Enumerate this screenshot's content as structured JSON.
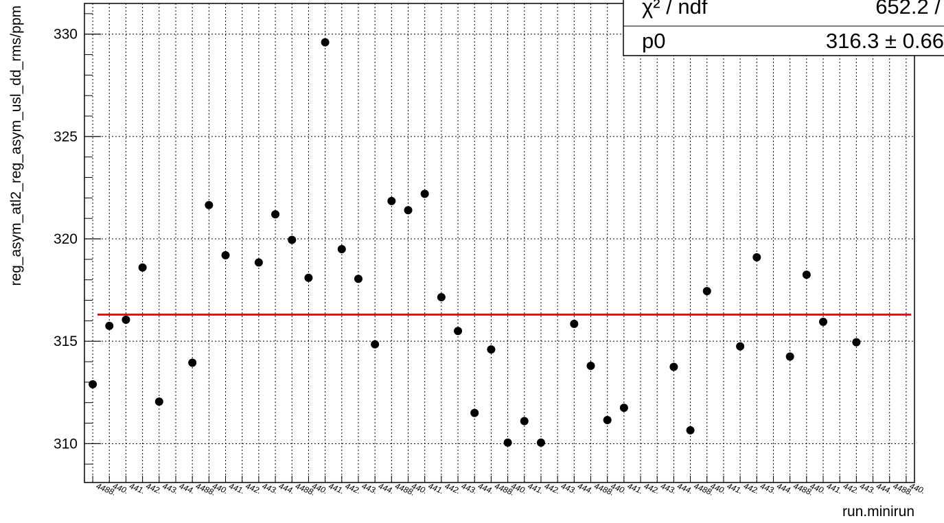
{
  "chart_data": {
    "type": "scatter",
    "xlabel": "run.minirun",
    "ylabel": "reg_asym_atl2_reg_asym_usl_dd_rms/ppm",
    "ylim": [
      308.1,
      331.5
    ],
    "yticks": [
      310,
      315,
      320,
      325,
      330
    ],
    "grid": true,
    "categories": [
      "4488.0",
      "4488.1",
      "4488.2",
      "4488.3",
      "4489.0",
      "4489.1",
      "4489.2",
      "4491.0",
      "4491.1",
      "4491.2",
      "4492.0",
      "4492.1",
      "4492.2",
      "4492.3",
      "4493.0",
      "4493.1",
      "4493.2",
      "4494.0",
      "4494.1",
      "4494.2",
      "4495.0",
      "4495.1",
      "4495.2",
      "4495.3",
      "4496.0",
      "4496.1",
      "4496.2",
      "4496.3",
      "4498.0",
      "4498.1",
      "4498.2",
      "4498.3",
      "4499.0",
      "4499.1",
      "4499.2",
      "4499.3",
      "4499.4",
      "4500.0",
      "4500.1",
      "4500.2",
      "4500.3",
      "4501.0",
      "4501.1",
      "4501.2",
      "4501.3",
      "4501.4",
      "4502.0",
      "4502.1",
      "4502.2",
      "4502.3"
    ],
    "x_tick_fragments": [
      "44",
      "88.",
      "0.",
      "1.",
      "2.",
      "3.",
      "4."
    ],
    "series": [
      {
        "marker": "filled-circle",
        "color": "#000000",
        "points": [
          {
            "i": 0,
            "y": 312.9
          },
          {
            "i": 1,
            "y": 315.75
          },
          {
            "i": 2,
            "y": 316.05
          },
          {
            "i": 3,
            "y": 318.6
          },
          {
            "i": 4,
            "y": 312.05
          },
          {
            "i": 6,
            "y": 313.95
          },
          {
            "i": 7,
            "y": 321.65
          },
          {
            "i": 8,
            "y": 319.2
          },
          {
            "i": 10,
            "y": 318.85
          },
          {
            "i": 11,
            "y": 321.2
          },
          {
            "i": 12,
            "y": 319.95
          },
          {
            "i": 13,
            "y": 318.1
          },
          {
            "i": 14,
            "y": 329.6
          },
          {
            "i": 15,
            "y": 319.5
          },
          {
            "i": 16,
            "y": 318.05
          },
          {
            "i": 17,
            "y": 314.85
          },
          {
            "i": 18,
            "y": 321.85
          },
          {
            "i": 19,
            "y": 321.4
          },
          {
            "i": 20,
            "y": 322.2
          },
          {
            "i": 21,
            "y": 317.15
          },
          {
            "i": 22,
            "y": 315.5
          },
          {
            "i": 23,
            "y": 311.5
          },
          {
            "i": 24,
            "y": 314.6
          },
          {
            "i": 25,
            "y": 310.05
          },
          {
            "i": 26,
            "y": 311.1
          },
          {
            "i": 27,
            "y": 310.05
          },
          {
            "i": 29,
            "y": 315.85
          },
          {
            "i": 30,
            "y": 313.8
          },
          {
            "i": 31,
            "y": 311.15
          },
          {
            "i": 32,
            "y": 311.75
          },
          {
            "i": 35,
            "y": 313.75
          },
          {
            "i": 36,
            "y": 310.65
          },
          {
            "i": 37,
            "y": 317.45
          },
          {
            "i": 39,
            "y": 314.75
          },
          {
            "i": 40,
            "y": 319.1
          },
          {
            "i": 42,
            "y": 314.25
          },
          {
            "i": 43,
            "y": 318.25
          },
          {
            "i": 44,
            "y": 315.95
          },
          {
            "i": 46,
            "y": 314.95
          }
        ]
      }
    ],
    "fit": {
      "type": "constant",
      "value": 316.3,
      "color": "#ff0000"
    },
    "stats_box": {
      "rows": [
        {
          "label": "χ² / ndf",
          "value": "652.2 /"
        },
        {
          "label": "p0",
          "value": "316.3 ± 0.66"
        }
      ]
    }
  }
}
